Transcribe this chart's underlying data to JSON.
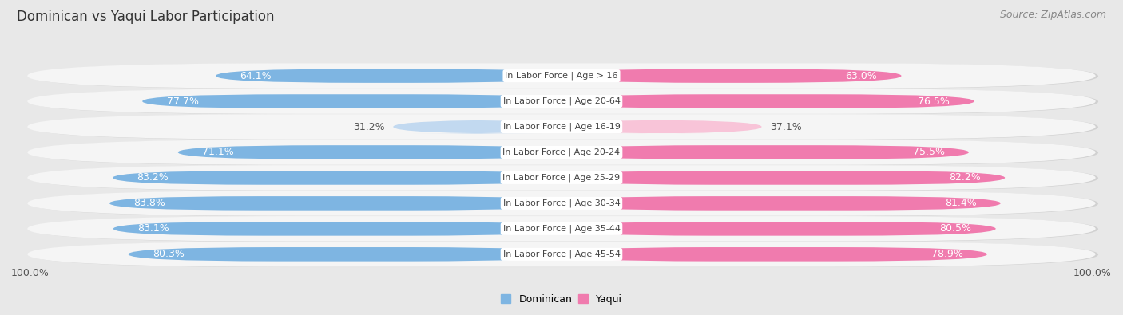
{
  "title": "Dominican vs Yaqui Labor Participation",
  "source": "Source: ZipAtlas.com",
  "categories": [
    "In Labor Force | Age > 16",
    "In Labor Force | Age 20-64",
    "In Labor Force | Age 16-19",
    "In Labor Force | Age 20-24",
    "In Labor Force | Age 25-29",
    "In Labor Force | Age 30-34",
    "In Labor Force | Age 35-44",
    "In Labor Force | Age 45-54"
  ],
  "dominican_values": [
    64.1,
    77.7,
    31.2,
    71.1,
    83.2,
    83.8,
    83.1,
    80.3
  ],
  "yaqui_values": [
    63.0,
    76.5,
    37.1,
    75.5,
    82.2,
    81.4,
    80.5,
    78.9
  ],
  "dominican_color": "#7EB5E2",
  "dominican_color_light": "#C2D9F0",
  "yaqui_color": "#F07BAE",
  "yaqui_color_light": "#F8C4D8",
  "label_color_white": "#ffffff",
  "label_color_dark": "#555555",
  "bg_color": "#e8e8e8",
  "row_bg": "#f5f5f5",
  "row_shadow": "#cccccc",
  "center_label_color": "#444444",
  "axis_label": "100.0%",
  "legend_labels": [
    "Dominican",
    "Yaqui"
  ],
  "title_fontsize": 12,
  "source_fontsize": 9,
  "bar_label_fontsize": 9,
  "category_fontsize": 8,
  "axis_fontsize": 9
}
